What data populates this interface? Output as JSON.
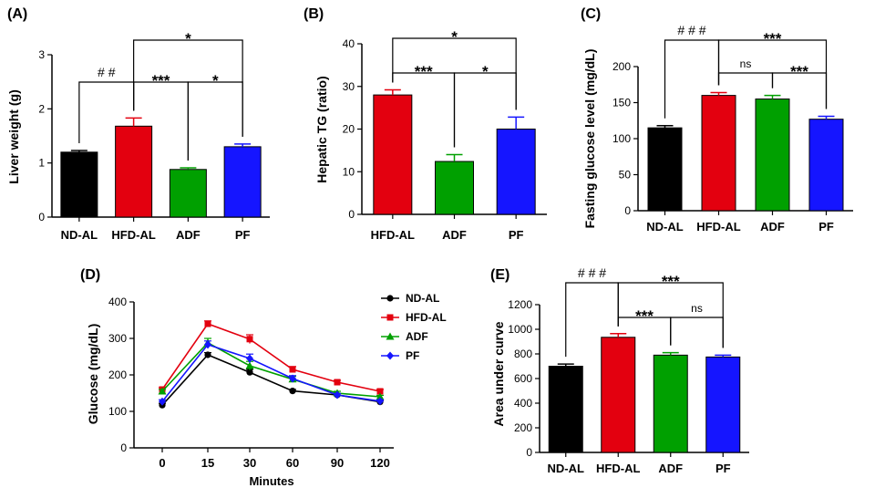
{
  "chart_data": [
    {
      "panel": "(A)",
      "type": "bar",
      "ylabel": "Liver weight (g)",
      "categories": [
        "ND-AL",
        "HFD-AL",
        "ADF",
        "PF"
      ],
      "values": [
        1.2,
        1.68,
        0.88,
        1.3
      ],
      "errors": [
        0.03,
        0.15,
        0.03,
        0.05
      ],
      "colors": [
        "#000000",
        "#e3000f",
        "#00a000",
        "#1515ff"
      ],
      "ylim": [
        0,
        3
      ],
      "yticks": [
        0,
        1,
        2,
        3
      ],
      "annotations": [
        {
          "from": 0,
          "to": 1,
          "label": "# #",
          "level": 1
        },
        {
          "from": 1,
          "to": 2,
          "label": "***",
          "level": 1
        },
        {
          "from": 2,
          "to": 3,
          "label": "*",
          "level": 1
        },
        {
          "from": 1,
          "to": 3,
          "label": "*",
          "level": 2
        }
      ]
    },
    {
      "panel": "(B)",
      "type": "bar",
      "ylabel": "Hepatic TG (ratio)",
      "categories": [
        "HFD-AL",
        "ADF",
        "PF"
      ],
      "values": [
        28,
        12.4,
        20
      ],
      "errors": [
        1.2,
        1.6,
        2.8
      ],
      "colors": [
        "#e3000f",
        "#00a000",
        "#1515ff"
      ],
      "ylim": [
        0,
        40
      ],
      "yticks": [
        0,
        10,
        20,
        30,
        40
      ],
      "annotations": [
        {
          "from": 0,
          "to": 1,
          "label": "***",
          "level": 1
        },
        {
          "from": 1,
          "to": 2,
          "label": "*",
          "level": 1
        },
        {
          "from": 0,
          "to": 2,
          "label": "*",
          "level": 2
        }
      ]
    },
    {
      "panel": "(C)",
      "type": "bar",
      "ylabel": "Fasting glucose level (mg/dL)",
      "categories": [
        "ND-AL",
        "HFD-AL",
        "ADF",
        "PF"
      ],
      "values": [
        115,
        160,
        155,
        127
      ],
      "errors": [
        3,
        4,
        5,
        4
      ],
      "colors": [
        "#000000",
        "#e3000f",
        "#00a000",
        "#1515ff"
      ],
      "ylim": [
        0,
        200
      ],
      "yticks": [
        0,
        50,
        100,
        150,
        200
      ],
      "annotations": [
        {
          "from": 0,
          "to": 1,
          "label": "# # #",
          "level": 2
        },
        {
          "from": 1,
          "to": 2,
          "label": "ns",
          "level": 1
        },
        {
          "from": 2,
          "to": 3,
          "label": "***",
          "level": 1
        },
        {
          "from": 1,
          "to": 3,
          "label": "***",
          "level": 2
        }
      ]
    },
    {
      "panel": "(D)",
      "type": "line",
      "ylabel": "Glucose (mg/dL)",
      "xlabel": "Minutes",
      "x": [
        "0",
        "15",
        "30",
        "60",
        "90",
        "120"
      ],
      "ylim": [
        0,
        400
      ],
      "yticks": [
        0,
        100,
        200,
        300,
        400
      ],
      "series": [
        {
          "name": "ND-AL",
          "color": "#000000",
          "marker": "circle",
          "values": [
            117,
            255,
            207,
            156,
            145,
            126
          ],
          "errors": [
            5,
            6,
            8,
            4,
            4,
            4
          ]
        },
        {
          "name": "HFD-AL",
          "color": "#e3000f",
          "marker": "square",
          "values": [
            160,
            340,
            298,
            215,
            180,
            155
          ],
          "errors": [
            5,
            8,
            12,
            8,
            5,
            5
          ]
        },
        {
          "name": "ADF",
          "color": "#00a000",
          "marker": "triangle",
          "values": [
            155,
            288,
            225,
            188,
            150,
            140
          ],
          "errors": [
            5,
            12,
            12,
            8,
            5,
            4
          ]
        },
        {
          "name": "PF",
          "color": "#1515ff",
          "marker": "diamond",
          "values": [
            127,
            283,
            245,
            190,
            145,
            128
          ],
          "errors": [
            5,
            10,
            12,
            8,
            4,
            4
          ]
        }
      ]
    },
    {
      "panel": "(E)",
      "type": "bar",
      "ylabel": "Area under curve",
      "categories": [
        "ND-AL",
        "HFD-AL",
        "ADF",
        "PF"
      ],
      "values": [
        700,
        935,
        790,
        775
      ],
      "errors": [
        18,
        30,
        20,
        15
      ],
      "colors": [
        "#000000",
        "#e3000f",
        "#00a000",
        "#1515ff"
      ],
      "ylim": [
        0,
        1200
      ],
      "yticks": [
        0,
        200,
        400,
        600,
        800,
        1000,
        1200
      ],
      "annotations": [
        {
          "from": 0,
          "to": 1,
          "label": "# # #",
          "level": 2
        },
        {
          "from": 1,
          "to": 2,
          "label": "***",
          "level": 1
        },
        {
          "from": 2,
          "to": 3,
          "label": "ns",
          "level": 1
        },
        {
          "from": 1,
          "to": 3,
          "label": "***",
          "level": 2
        }
      ]
    }
  ]
}
